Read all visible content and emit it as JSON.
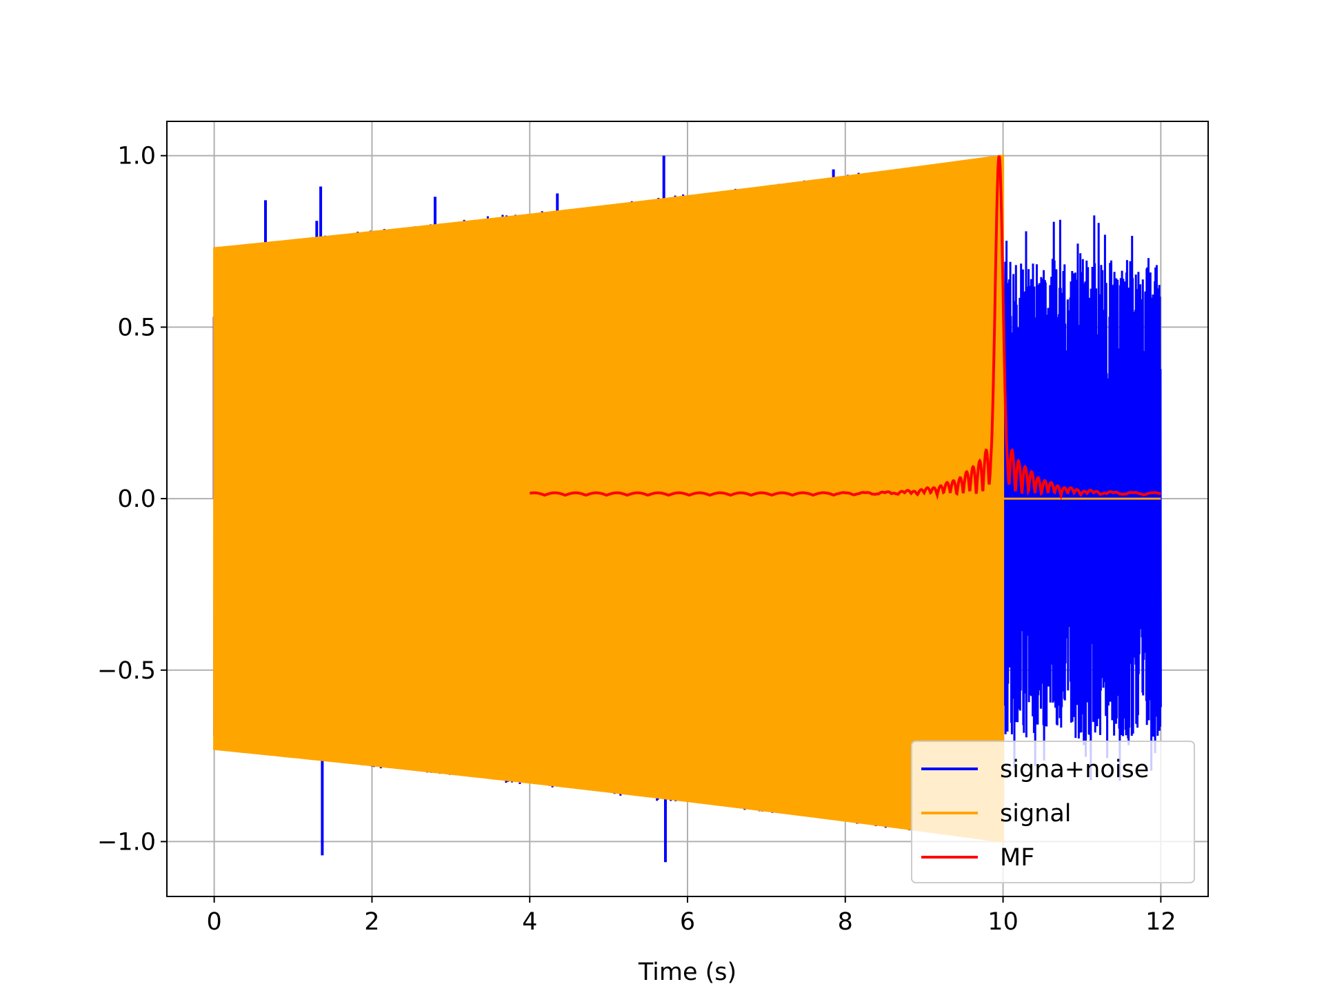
{
  "chart_data": {
    "type": "line",
    "title": "",
    "xlabel": "Time (s)",
    "ylabel": "",
    "xlim": [
      -0.6,
      12.6
    ],
    "ylim": [
      -1.16,
      1.1
    ],
    "xticks": [
      0,
      2,
      4,
      6,
      8,
      10,
      12
    ],
    "xtick_labels": [
      "0",
      "2",
      "4",
      "6",
      "8",
      "10",
      "12"
    ],
    "yticks": [
      -1.0,
      -0.5,
      0.0,
      0.5,
      1.0
    ],
    "ytick_labels": [
      "−1.0",
      "−0.5",
      "0.0",
      "0.5",
      "1.0"
    ],
    "grid": true,
    "legend_position": "lower-right",
    "series": [
      {
        "name": "signa+noise",
        "color": "#0000ff",
        "x_range": [
          0,
          12
        ],
        "description_values": {
          "visible_spike_peaks": [
            {
              "x": 0.0,
              "y": 0.53
            },
            {
              "x": 0.65,
              "y": 0.87
            },
            {
              "x": 1.3,
              "y": 0.81
            },
            {
              "x": 1.35,
              "y": 0.91
            },
            {
              "x": 1.37,
              "y": -1.04
            },
            {
              "x": 2.4,
              "y": 0.79
            },
            {
              "x": 2.8,
              "y": 0.88
            },
            {
              "x": 4.35,
              "y": 0.89
            },
            {
              "x": 5.7,
              "y": 1.0
            },
            {
              "x": 5.72,
              "y": -1.06
            },
            {
              "x": 7.6,
              "y": 0.92
            },
            {
              "x": 7.85,
              "y": 0.96
            }
          ],
          "noise_amplitude_after_10s": 0.7
        }
      },
      {
        "name": "signal",
        "color": "#ffa500",
        "x_range": [
          0,
          10
        ],
        "envelope_start": 0.73,
        "envelope_end": 1.0,
        "value_after_10s": 0.0
      },
      {
        "name": "MF",
        "color": "#ff0000",
        "x_range": [
          4,
          12
        ],
        "peak": {
          "x": 9.95,
          "y": 1.0
        },
        "sidelobes": [
          {
            "x": 9.75,
            "y": 0.2
          },
          {
            "x": 10.1,
            "y": 0.21
          },
          {
            "x": 9.6,
            "y": 0.12
          },
          {
            "x": 10.25,
            "y": 0.11
          }
        ],
        "baseline": 0.01
      }
    ]
  }
}
